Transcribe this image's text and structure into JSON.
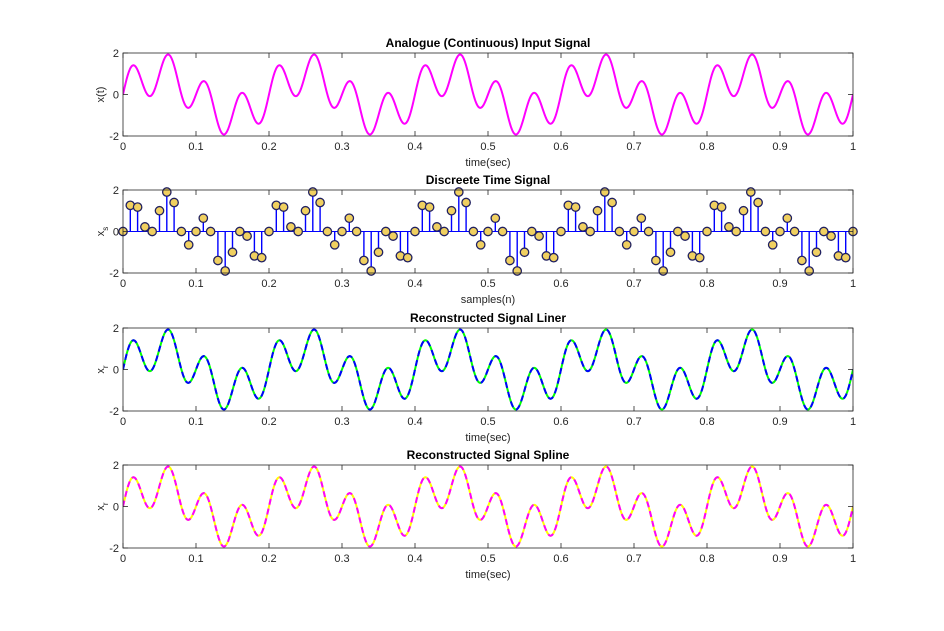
{
  "chart_data": [
    {
      "type": "line",
      "title": "Analogue (Continuous) Input Signal",
      "xlabel": "time(sec)",
      "ylabel": "x(t)",
      "xlim": [
        0,
        1
      ],
      "ylim": [
        -2,
        2
      ],
      "xticks": [
        "0",
        "0.1",
        "0.2",
        "0.3",
        "0.4",
        "0.5",
        "0.6",
        "0.7",
        "0.8",
        "0.9",
        "1"
      ],
      "yticks": [
        "-2",
        "0",
        "2"
      ],
      "grid": false,
      "signal": {
        "formula": "sin(2*pi*5*t) + sin(2*pi*20*t)",
        "components_hz": [
          5,
          20
        ],
        "amplitudes": [
          1,
          1
        ]
      },
      "series": [
        {
          "color": "#ff00ff",
          "style": "solid"
        }
      ]
    },
    {
      "type": "stem",
      "title": "Discreete Time Signal",
      "xlabel": "samples(n)",
      "ylabel": "x",
      "ylabel_sub": "s",
      "xlim": [
        0,
        1
      ],
      "ylim": [
        -2,
        2
      ],
      "xticks": [
        "0",
        "0.1",
        "0.2",
        "0.3",
        "0.4",
        "0.5",
        "0.6",
        "0.7",
        "0.8",
        "0.9",
        "1"
      ],
      "yticks": [
        "-2",
        "0",
        "2"
      ],
      "grid": false,
      "sampling": {
        "fs_hz": 100,
        "t_start": 0,
        "t_end": 1
      },
      "series": [
        {
          "color": "#0000ff",
          "marker_fill": "#f0d060",
          "marker_edge": "#202060"
        }
      ]
    },
    {
      "type": "line",
      "title": "Reconstructed Signal Liner",
      "xlabel": "time(sec)",
      "ylabel": "x",
      "ylabel_sub": "r",
      "xlim": [
        0,
        1
      ],
      "ylim": [
        -2,
        2
      ],
      "xticks": [
        "0",
        "0.1",
        "0.2",
        "0.3",
        "0.4",
        "0.5",
        "0.6",
        "0.7",
        "0.8",
        "0.9",
        "1"
      ],
      "yticks": [
        "-2",
        "0",
        "2"
      ],
      "grid": false,
      "series": [
        {
          "color": "#00ff00",
          "style": "solid"
        },
        {
          "color": "#0000ff",
          "style": "dashed"
        }
      ]
    },
    {
      "type": "line",
      "title": "Reconstructed Signal Spline",
      "xlabel": "time(sec)",
      "ylabel": "x",
      "ylabel_sub": "r",
      "xlim": [
        0,
        1
      ],
      "ylim": [
        -2,
        2
      ],
      "xticks": [
        "0",
        "0.1",
        "0.2",
        "0.3",
        "0.4",
        "0.5",
        "0.6",
        "0.7",
        "0.8",
        "0.9",
        "1"
      ],
      "yticks": [
        "-2",
        "0",
        "2"
      ],
      "grid": false,
      "series": [
        {
          "color": "#ffff00",
          "style": "solid"
        },
        {
          "color": "#ff00ff",
          "style": "dashed"
        }
      ]
    }
  ]
}
